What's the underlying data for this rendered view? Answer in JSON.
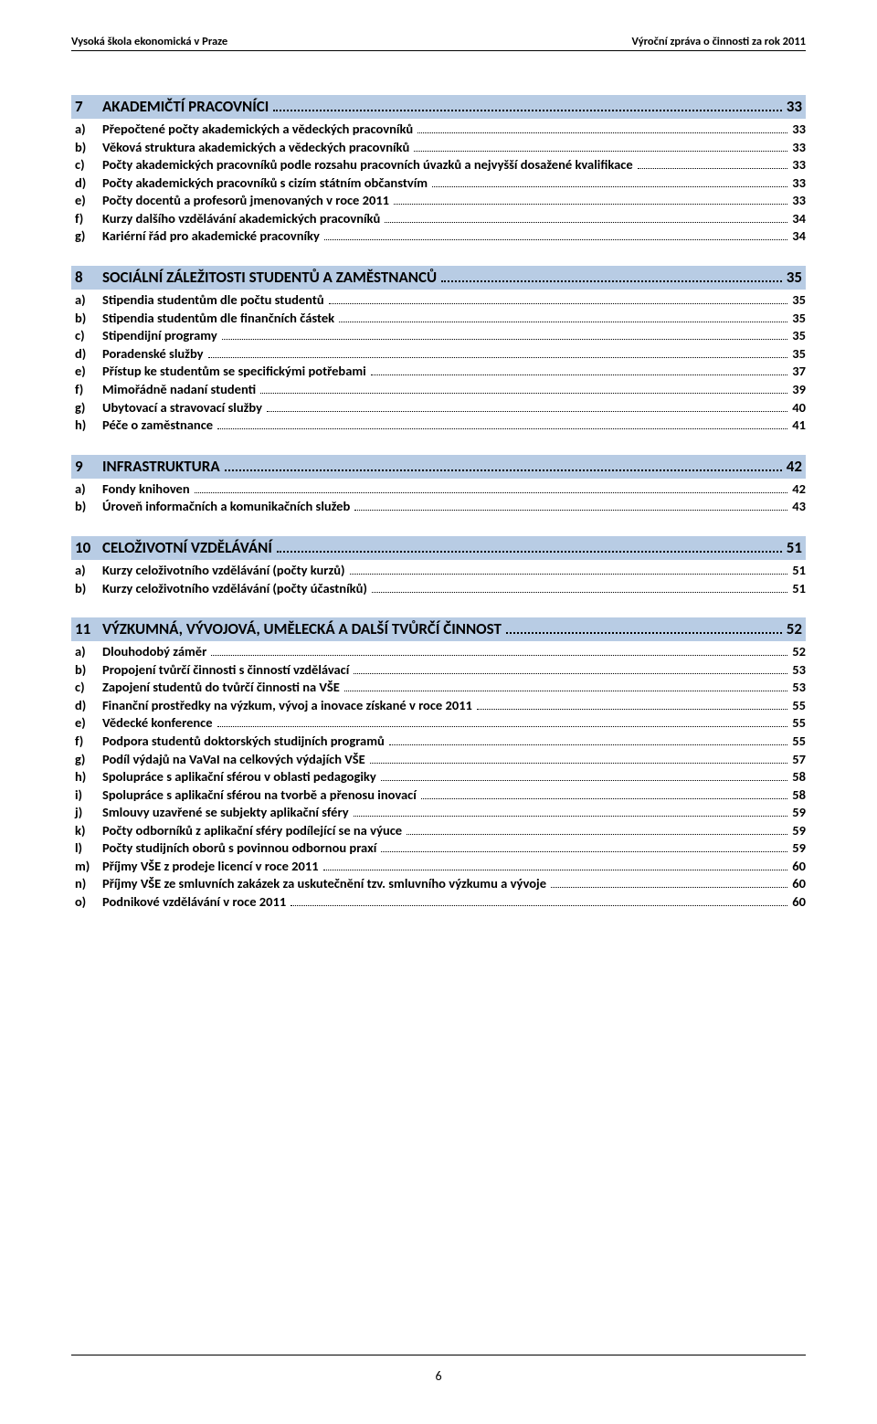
{
  "header": {
    "left": "Vysoká škola ekonomická v Praze",
    "right": "Výroční zpráva o činnosti za rok 2011"
  },
  "footer": {
    "page": "6"
  },
  "colors": {
    "section_bg": "#b8cce4",
    "text": "#000000",
    "page_bg": "#ffffff"
  },
  "toc": [
    {
      "num": "7",
      "title": "AKADEMIČTÍ PRACOVNÍCI",
      "page": "33",
      "items": [
        {
          "letter": "a)",
          "text": "Přepočtené počty akademických a vědeckých pracovníků",
          "page": "33"
        },
        {
          "letter": "b)",
          "text": "Věková struktura akademických a vědeckých pracovníků",
          "page": "33"
        },
        {
          "letter": "c)",
          "text": "Počty akademických pracovníků podle rozsahu pracovních úvazků a nejvyšší dosažené kvalifikace",
          "page": "33"
        },
        {
          "letter": "d)",
          "text": "Počty akademických pracovníků s cizím státním občanstvím",
          "page": "33"
        },
        {
          "letter": "e)",
          "text": "Počty docentů a profesorů jmenovaných v roce 2011",
          "page": "33"
        },
        {
          "letter": "f)",
          "text": "Kurzy dalšího vzdělávání akademických pracovníků",
          "page": "34"
        },
        {
          "letter": "g)",
          "text": "Kariérní řád pro akademické pracovníky",
          "page": "34"
        }
      ]
    },
    {
      "num": "8",
      "title": "SOCIÁLNÍ ZÁLEŽITOSTI STUDENTŮ A ZAMĚSTNANCŮ",
      "page": "35",
      "items": [
        {
          "letter": "a)",
          "text": "Stipendia studentům dle počtu studentů",
          "page": "35"
        },
        {
          "letter": "b)",
          "text": "Stipendia studentům dle finančních částek",
          "page": "35"
        },
        {
          "letter": "c)",
          "text": "Stipendijní programy",
          "page": "35"
        },
        {
          "letter": "d)",
          "text": "Poradenské služby",
          "page": "35"
        },
        {
          "letter": "e)",
          "text": "Přístup ke studentům se specifickými potřebami",
          "page": "37"
        },
        {
          "letter": "f)",
          "text": "Mimořádně nadaní studenti",
          "page": "39"
        },
        {
          "letter": "g)",
          "text": "Ubytovací a stravovací služby",
          "page": "40"
        },
        {
          "letter": "h)",
          "text": "Péče o zaměstnance",
          "page": "41"
        }
      ]
    },
    {
      "num": "9",
      "title": "INFRASTRUKTURA",
      "page": "42",
      "items": [
        {
          "letter": "a)",
          "text": "Fondy knihoven",
          "page": "42"
        },
        {
          "letter": "b)",
          "text": "Úroveň informačních a komunikačních služeb",
          "page": "43"
        }
      ]
    },
    {
      "num": "10",
      "title": "CELOŽIVOTNÍ VZDĚLÁVÁNÍ",
      "page": "51",
      "items": [
        {
          "letter": "a)",
          "text": "Kurzy celoživotního vzdělávání (počty kurzů)",
          "page": "51"
        },
        {
          "letter": "b)",
          "text": "Kurzy celoživotního vzdělávání (počty účastníků)",
          "page": "51"
        }
      ]
    },
    {
      "num": "11",
      "title": "VÝZKUMNÁ, VÝVOJOVÁ, UMĚLECKÁ A DALŠÍ TVŮRČÍ ČINNOST",
      "page": "52",
      "items": [
        {
          "letter": "a)",
          "text": "Dlouhodobý záměr",
          "page": "52"
        },
        {
          "letter": "b)",
          "text": "Propojení tvůrčí činnosti s činností vzdělávací",
          "page": "53"
        },
        {
          "letter": "c)",
          "text": "Zapojení studentů do tvůrčí činnosti na VŠE",
          "page": "53"
        },
        {
          "letter": "d)",
          "text": "Finanční prostředky na výzkum, vývoj a inovace získané v roce 2011",
          "page": "55"
        },
        {
          "letter": "e)",
          "text": "Vědecké konference",
          "page": "55"
        },
        {
          "letter": "f)",
          "text": "Podpora studentů doktorských studijních programů",
          "page": "55"
        },
        {
          "letter": "g)",
          "text": "Podíl výdajů na VaVaI na celkových výdajích VŠE",
          "page": "57"
        },
        {
          "letter": "h)",
          "text": "Spolupráce s aplikační sférou v oblasti pedagogiky",
          "page": "58"
        },
        {
          "letter": "i)",
          "text": "Spolupráce s aplikační sférou na tvorbě a přenosu inovací",
          "page": "58"
        },
        {
          "letter": "j)",
          "text": "Smlouvy uzavřené se subjekty aplikační sféry",
          "page": "59"
        },
        {
          "letter": "k)",
          "text": "Počty odborníků z aplikační sféry podílející se na výuce",
          "page": "59"
        },
        {
          "letter": "l)",
          "text": "Počty studijních oborů s povinnou odbornou praxí",
          "page": "59"
        },
        {
          "letter": "m)",
          "text": "Příjmy VŠE z prodeje licencí v roce 2011",
          "page": "60"
        },
        {
          "letter": "n)",
          "text": "Příjmy VŠE ze smluvních zakázek za uskutečnění tzv. smluvního výzkumu a vývoje",
          "page": "60"
        },
        {
          "letter": "o)",
          "text": "Podnikové vzdělávání v roce 2011",
          "page": "60"
        }
      ]
    }
  ]
}
